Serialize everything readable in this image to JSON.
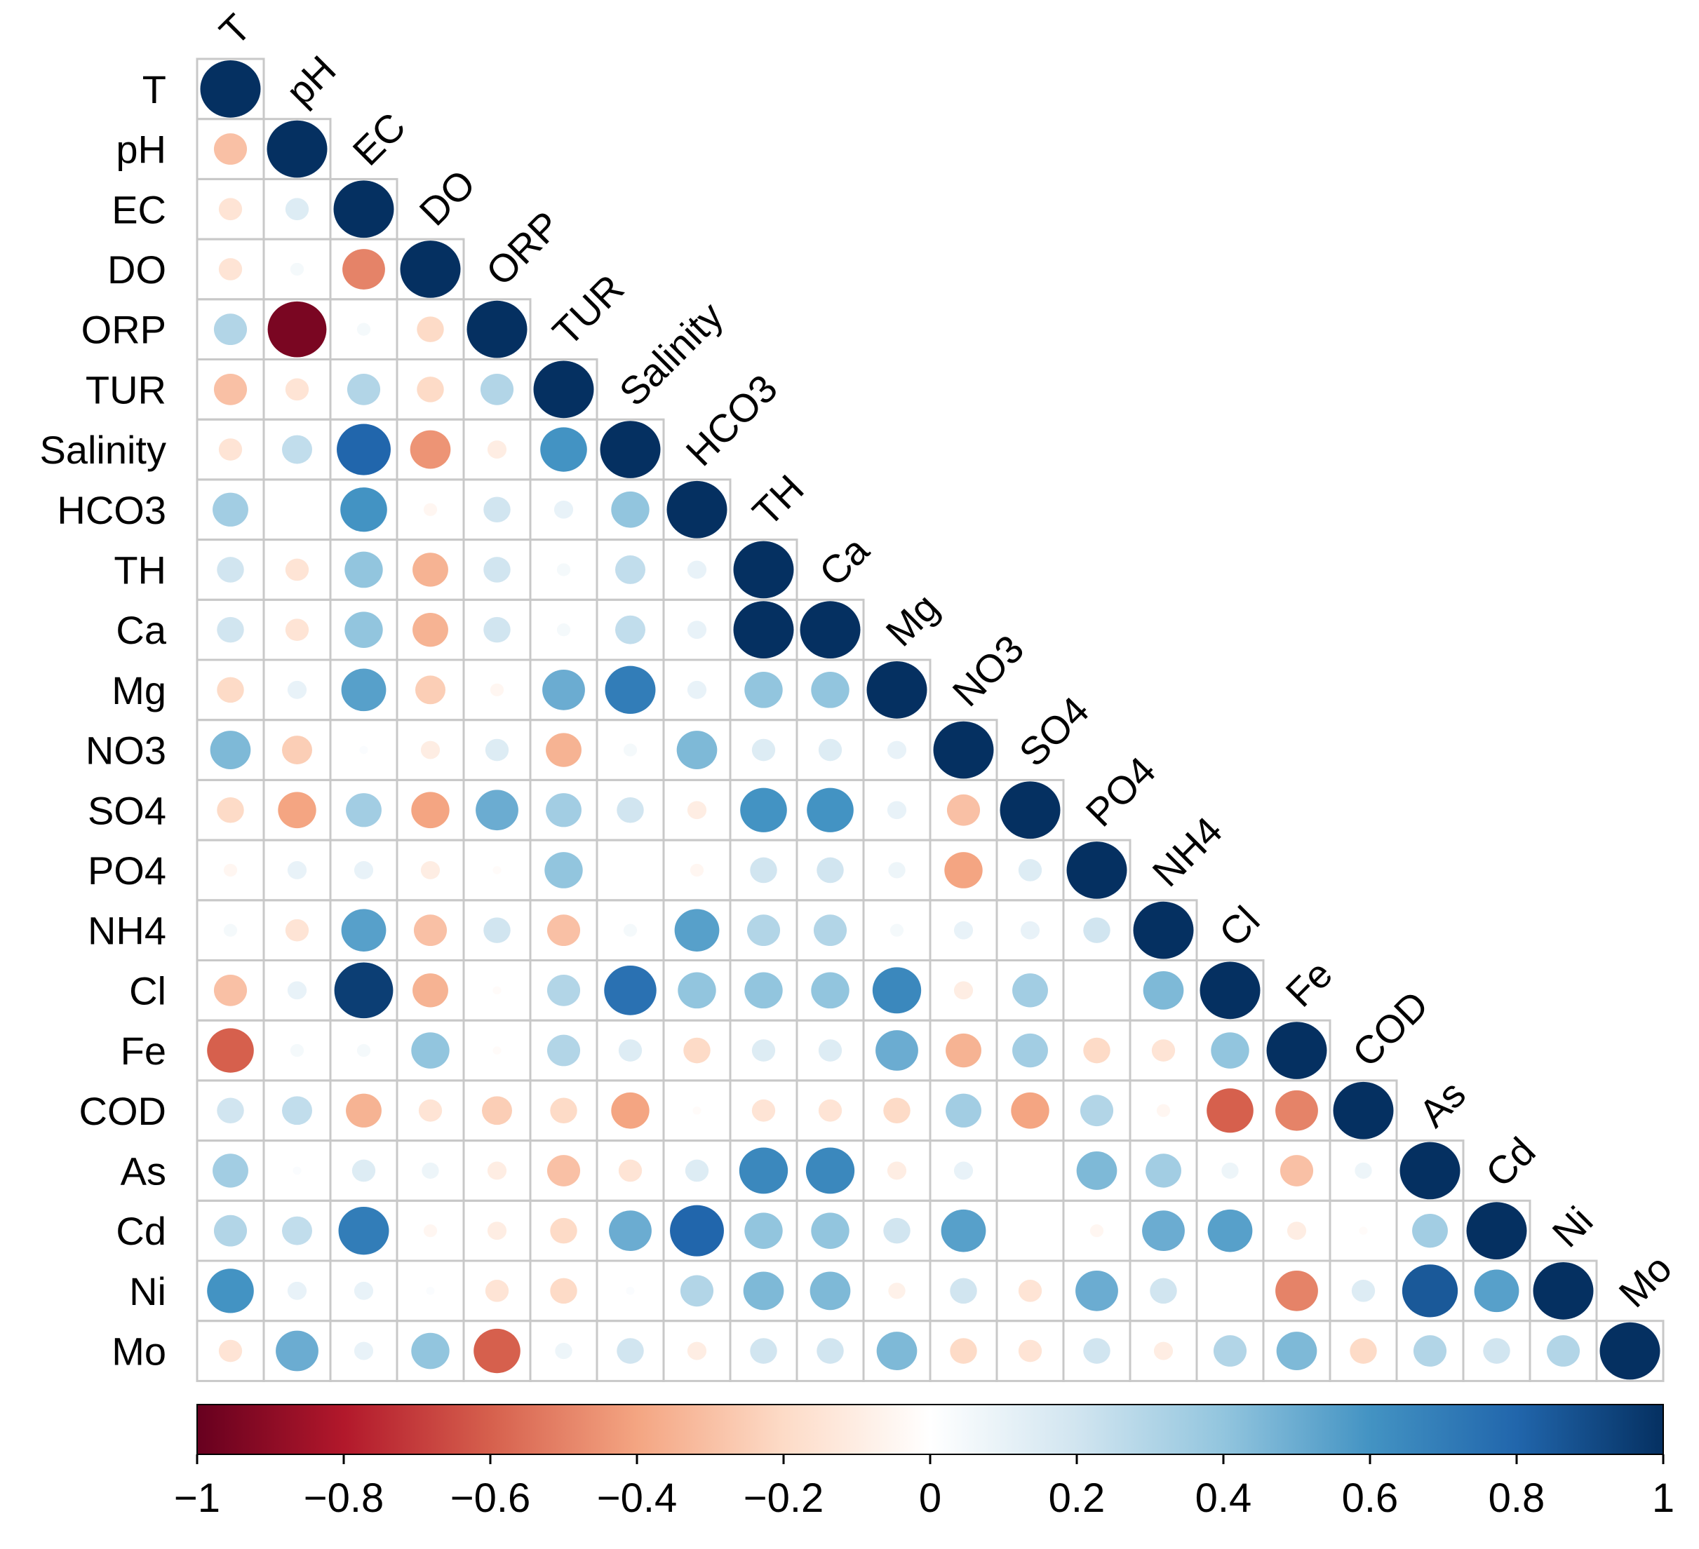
{
  "chart_data": {
    "type": "heatmap",
    "style": "correlogram-circles-lower-triangle",
    "variables": [
      "T",
      "pH",
      "EC",
      "DO",
      "ORP",
      "TUR",
      "Salinity",
      "HCO3",
      "TH",
      "Ca",
      "Mg",
      "NO3",
      "SO4",
      "PO4",
      "NH4",
      "Cl",
      "Fe",
      "COD",
      "As",
      "Cd",
      "Ni",
      "Mo"
    ],
    "lower_triangle_rows": [
      [
        1
      ],
      [
        -0.3,
        1
      ],
      [
        -0.15,
        0.15,
        1
      ],
      [
        -0.15,
        0.05,
        -0.5,
        1
      ],
      [
        0.3,
        -0.95,
        0.05,
        -0.2,
        1
      ],
      [
        -0.3,
        -0.15,
        0.3,
        -0.2,
        0.3,
        1
      ],
      [
        -0.15,
        0.25,
        0.8,
        -0.45,
        -0.1,
        0.6,
        1
      ],
      [
        0.35,
        0,
        0.6,
        -0.05,
        0.2,
        0.1,
        0.4,
        1
      ],
      [
        0.2,
        -0.15,
        0.4,
        -0.35,
        0.2,
        0.05,
        0.25,
        0.1,
        1
      ],
      [
        0.2,
        -0.15,
        0.4,
        -0.35,
        0.2,
        0.05,
        0.25,
        0.1,
        1,
        1
      ],
      [
        -0.2,
        0.1,
        0.55,
        -0.25,
        -0.05,
        0.5,
        0.7,
        0.1,
        0.4,
        0.4,
        1
      ],
      [
        0.45,
        -0.25,
        0.02,
        -0.1,
        0.15,
        -0.35,
        0.05,
        0.45,
        0.15,
        0.15,
        0.1,
        1
      ],
      [
        -0.2,
        -0.4,
        0.35,
        -0.4,
        0.5,
        0.35,
        0.2,
        -0.1,
        0.6,
        0.6,
        0.1,
        -0.3,
        1
      ],
      [
        -0.05,
        0.1,
        0.1,
        -0.1,
        -0.02,
        0.4,
        0,
        -0.05,
        0.2,
        0.2,
        0.08,
        -0.4,
        0.15,
        1
      ],
      [
        0.05,
        -0.15,
        0.55,
        -0.3,
        0.2,
        -0.3,
        0.05,
        0.55,
        0.3,
        0.3,
        0.05,
        0.1,
        0.1,
        0.2,
        1
      ],
      [
        -0.3,
        0.1,
        0.95,
        -0.35,
        -0.02,
        0.3,
        0.75,
        0.4,
        0.4,
        0.4,
        0.65,
        -0.1,
        0.35,
        0,
        0.45,
        1
      ],
      [
        -0.6,
        0.05,
        0.05,
        0.4,
        -0.02,
        0.3,
        0.15,
        -0.2,
        0.15,
        0.15,
        0.5,
        -0.35,
        0.35,
        -0.2,
        -0.15,
        0.4,
        1
      ],
      [
        0.2,
        0.25,
        -0.35,
        -0.15,
        -0.25,
        -0.2,
        -0.4,
        -0.02,
        -0.15,
        -0.15,
        -0.2,
        0.35,
        -0.4,
        0.3,
        -0.05,
        -0.6,
        -0.5,
        1
      ],
      [
        0.35,
        0.02,
        0.15,
        0.08,
        -0.1,
        -0.3,
        -0.15,
        0.15,
        0.65,
        0.65,
        -0.1,
        0.1,
        0,
        0.45,
        0.35,
        0.08,
        -0.3,
        0.08,
        1
      ],
      [
        0.3,
        0.25,
        0.7,
        -0.05,
        -0.1,
        -0.2,
        0.5,
        0.8,
        0.4,
        0.4,
        0.2,
        0.55,
        0,
        -0.05,
        0.5,
        0.55,
        -0.1,
        -0.02,
        0.35,
        1
      ],
      [
        0.6,
        0.1,
        0.1,
        0.02,
        -0.15,
        -0.2,
        0.02,
        0.3,
        0.45,
        0.45,
        -0.08,
        0.2,
        -0.15,
        0.5,
        0.2,
        0,
        -0.5,
        0.15,
        0.85,
        0.55,
        1
      ],
      [
        -0.15,
        0.5,
        0.1,
        0.4,
        -0.6,
        0.08,
        0.2,
        -0.1,
        0.2,
        0.2,
        0.45,
        -0.2,
        -0.15,
        0.2,
        -0.1,
        0.3,
        0.45,
        -0.2,
        0.3,
        0.2,
        0.3,
        1
      ]
    ],
    "colorbar": {
      "range": [
        -1,
        1
      ],
      "tick_values": [
        -1,
        -0.8,
        -0.6,
        -0.4,
        -0.2,
        0,
        0.2,
        0.4,
        0.6,
        0.8,
        1
      ],
      "tick_labels": [
        "−1",
        "−0.8",
        "−0.6",
        "−0.4",
        "−0.2",
        "0",
        "0.2",
        "0.4",
        "0.6",
        "0.8",
        "1"
      ],
      "placement": "bottom",
      "palette": [
        "#67001f",
        "#b2182b",
        "#d6604d",
        "#f4a582",
        "#fddbc7",
        "#ffffff",
        "#d1e5f0",
        "#92c5de",
        "#4393c3",
        "#2166ac",
        "#053061"
      ],
      "palette_negative_end": "#67001f",
      "palette_positive_end": "#053061"
    },
    "title": "",
    "grid": true
  }
}
